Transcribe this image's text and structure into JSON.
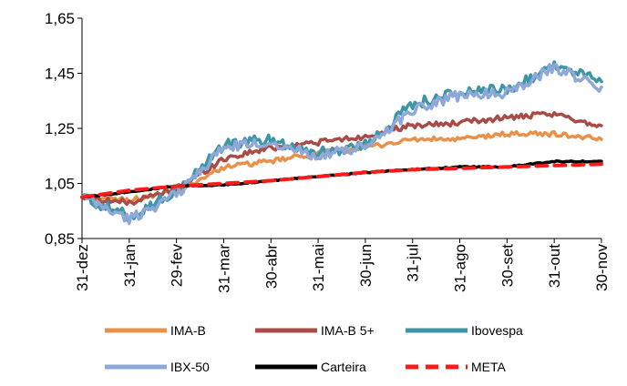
{
  "chart_data": {
    "type": "line",
    "title": "",
    "xlabel": "",
    "ylabel": "",
    "ylim": [
      0.85,
      1.65
    ],
    "yticks": [
      "0,85",
      "1,05",
      "1,25",
      "1,45",
      "1,65"
    ],
    "ytick_values": [
      0.85,
      1.05,
      1.25,
      1.45,
      1.65
    ],
    "grid": false,
    "legend_position": "bottom",
    "categories": [
      "31-dez",
      "31-jan",
      "29-fev",
      "31-mar",
      "30-abr",
      "31-mai",
      "30-jun",
      "31-jul",
      "31-ago",
      "30-set",
      "31-out",
      "30-nov"
    ],
    "series": [
      {
        "name": "IMA-B",
        "color": "#E8914A",
        "style": "solid",
        "values": [
          1.0,
          0.99,
          1.02,
          1.11,
          1.13,
          1.16,
          1.18,
          1.21,
          1.21,
          1.23,
          1.23,
          1.21
        ]
      },
      {
        "name": "IMA-B 5+",
        "color": "#A94B47",
        "style": "solid",
        "values": [
          1.0,
          0.98,
          1.03,
          1.14,
          1.18,
          1.2,
          1.22,
          1.26,
          1.27,
          1.29,
          1.3,
          1.26
        ]
      },
      {
        "name": "Ibovespa",
        "color": "#3E95A6",
        "style": "solid",
        "values": [
          1.0,
          0.93,
          1.02,
          1.19,
          1.21,
          1.16,
          1.19,
          1.34,
          1.38,
          1.39,
          1.48,
          1.42
        ]
      },
      {
        "name": "IBX-50",
        "color": "#8EA8D9",
        "style": "solid",
        "values": [
          1.0,
          0.92,
          1.01,
          1.18,
          1.2,
          1.15,
          1.18,
          1.32,
          1.37,
          1.38,
          1.47,
          1.4
        ]
      },
      {
        "name": "Carteira",
        "color": "#000000",
        "style": "solid",
        "values": [
          1.0,
          1.02,
          1.04,
          1.045,
          1.06,
          1.075,
          1.09,
          1.1,
          1.11,
          1.11,
          1.13,
          1.13
        ]
      },
      {
        "name": "META",
        "color": "#FF1A1A",
        "style": "dashed",
        "values": [
          1.0,
          1.025,
          1.04,
          1.05,
          1.06,
          1.075,
          1.09,
          1.1,
          1.105,
          1.11,
          1.115,
          1.12
        ]
      }
    ]
  }
}
